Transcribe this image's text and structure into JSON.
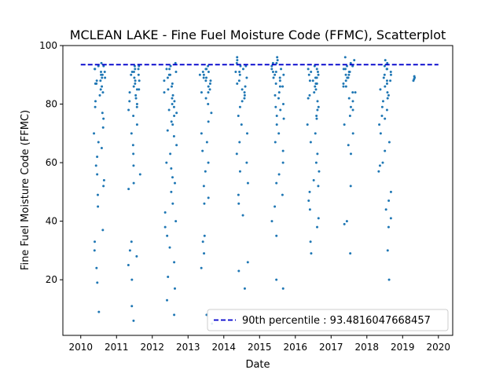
{
  "chart_data": {
    "type": "scatter",
    "title": "MCLEAN LAKE - Fine Fuel Moisture Code (FFMC), Scatterplot",
    "xlabel": "Date",
    "ylabel": "Fine Fuel Moisture Code (FFMC)",
    "xlim": [
      2009.5,
      2020.4
    ],
    "ylim": [
      1,
      100
    ],
    "xticks": [
      2010,
      2011,
      2012,
      2013,
      2014,
      2015,
      2016,
      2017,
      2018,
      2019,
      2020
    ],
    "yticks": [
      20,
      40,
      60,
      80,
      100
    ],
    "grid": false,
    "legend_position": "lower-right",
    "percentile_line": {
      "label": "90th percentile : 93.4816047668457",
      "value": 93.4816047668457
    },
    "series": [
      {
        "color": "#1f77b4",
        "seasons": [
          {
            "start": 2010.33,
            "end": 2010.68,
            "values": [
              85,
              87,
              88,
              89,
              90,
              91,
              92,
              93,
              94,
              84,
              86,
              88,
              90,
              92,
              83,
              81,
              79,
              77,
              75,
              72,
              70,
              67,
              65,
              62,
              59,
              56,
              54,
              52,
              49,
              45,
              37,
              33,
              30,
              24,
              19,
              9,
              91,
              93,
              89,
              87
            ]
          },
          {
            "start": 2011.33,
            "end": 2011.68,
            "values": [
              86,
              88,
              90,
              91,
              92,
              93,
              85,
              84,
              83,
              81,
              79,
              76,
              73,
              70,
              66,
              63,
              59,
              56,
              53,
              51,
              33,
              30,
              28,
              25,
              20,
              11,
              6,
              90,
              92,
              89,
              87,
              85,
              82,
              80,
              78,
              88,
              91,
              93
            ]
          },
          {
            "start": 2012.33,
            "end": 2012.68,
            "values": [
              87,
              89,
              90,
              91,
              92,
              93,
              94,
              86,
              84,
              82,
              80,
              78,
              76,
              73,
              71,
              69,
              66,
              63,
              60,
              58,
              55,
              53,
              50,
              46,
              43,
              40,
              38,
              35,
              31,
              26,
              21,
              17,
              13,
              8,
              90,
              92,
              88,
              85,
              83,
              81,
              79,
              77,
              74
            ]
          },
          {
            "start": 2013.33,
            "end": 2013.68,
            "values": [
              88,
              89,
              90,
              91,
              92,
              93,
              86,
              84,
              82,
              80,
              77,
              74,
              70,
              67,
              64,
              60,
              57,
              52,
              48,
              46,
              35,
              33,
              29,
              24,
              8,
              5,
              91,
              89,
              87,
              85,
              90,
              92,
              88,
              84
            ]
          },
          {
            "start": 2014.33,
            "end": 2014.68,
            "values": [
              89,
              90,
              91,
              92,
              93,
              94,
              95,
              96,
              87,
              86,
              84,
              82,
              79,
              76,
              73,
              70,
              67,
              63,
              60,
              57,
              53,
              49,
              46,
              42,
              26,
              23,
              17,
              91,
              93,
              88,
              85,
              83,
              81
            ]
          },
          {
            "start": 2015.33,
            "end": 2015.68,
            "values": [
              88,
              89,
              90,
              91,
              92,
              93,
              94,
              95,
              96,
              87,
              86,
              84,
              82,
              79,
              76,
              73,
              70,
              67,
              64,
              60,
              56,
              53,
              49,
              45,
              40,
              35,
              20,
              17,
              90,
              92,
              94,
              91,
              89,
              86,
              83,
              80,
              78,
              75
            ]
          },
          {
            "start": 2016.33,
            "end": 2016.68,
            "values": [
              87,
              88,
              89,
              90,
              91,
              92,
              93,
              86,
              84,
              82,
              79,
              76,
              73,
              70,
              67,
              63,
              60,
              57,
              54,
              52,
              50,
              47,
              44,
              41,
              38,
              33,
              29,
              91,
              89,
              87,
              85,
              83,
              81,
              78,
              75,
              88,
              90,
              92
            ]
          },
          {
            "start": 2017.33,
            "end": 2017.68,
            "values": [
              88,
              89,
              90,
              91,
              92,
              93,
              94,
              95,
              96,
              87,
              86,
              84,
              82,
              79,
              76,
              73,
              70,
              66,
              63,
              52,
              40,
              39,
              29,
              91,
              93,
              89,
              86,
              84,
              81,
              78,
              90,
              92
            ]
          },
          {
            "start": 2018.33,
            "end": 2018.68,
            "values": [
              87,
              88,
              89,
              90,
              91,
              92,
              93,
              94,
              95,
              86,
              84,
              82,
              79,
              76,
              73,
              70,
              67,
              64,
              60,
              57,
              59,
              50,
              47,
              44,
              41,
              38,
              30,
              20,
              90,
              92,
              88,
              85,
              83,
              81,
              78,
              75
            ]
          },
          {
            "start": 2019.3,
            "end": 2019.34,
            "values": [
              89,
              88.5,
              88,
              89.5
            ]
          }
        ]
      }
    ]
  }
}
